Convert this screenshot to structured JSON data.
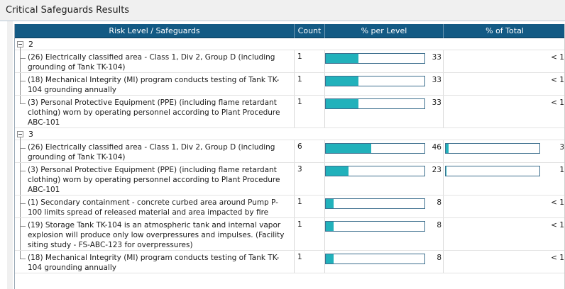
{
  "panel": {
    "title": "Critical Safeguards Results"
  },
  "columns": {
    "risk": "Risk Level / Safeguards",
    "count": "Count",
    "pct_level": "% per Level",
    "pct_total": "% of Total"
  },
  "groups": [
    {
      "label": "2",
      "rows": [
        {
          "name": "(26) Electrically classified area - Class 1, Div 2, Group D (including grounding of Tank TK-104)",
          "count": "1",
          "pct_level": 33,
          "pct_level_text": "33",
          "pct_total": 0.5,
          "pct_total_text": "< 1"
        },
        {
          "name": "(18) Mechanical Integrity (MI) program conducts testing of Tank TK-104 grounding annually",
          "count": "1",
          "pct_level": 33,
          "pct_level_text": "33",
          "pct_total": 0.5,
          "pct_total_text": "< 1"
        },
        {
          "name": "(3) Personal Protective Equipment (PPE) (including flame retardant clothing) worn by operating personnel according to Plant Procedure ABC-101",
          "count": "1",
          "pct_level": 33,
          "pct_level_text": "33",
          "pct_total": 0.5,
          "pct_total_text": "< 1"
        }
      ]
    },
    {
      "label": "3",
      "rows": [
        {
          "name": "(26) Electrically classified area - Class 1, Div 2, Group D (including grounding of Tank TK-104)",
          "count": "6",
          "pct_level": 46,
          "pct_level_text": "46",
          "pct_total": 3,
          "pct_total_text": "3"
        },
        {
          "name": "(3) Personal Protective Equipment (PPE) (including flame retardant clothing) worn by operating personnel according to Plant Procedure ABC-101",
          "count": "3",
          "pct_level": 23,
          "pct_level_text": "23",
          "pct_total": 1,
          "pct_total_text": "1"
        },
        {
          "name": "(1) Secondary containment - concrete curbed area around Pump P-100 limits spread of released material and area impacted by fire",
          "count": "1",
          "pct_level": 8,
          "pct_level_text": "8",
          "pct_total": 0.5,
          "pct_total_text": "< 1"
        },
        {
          "name": "(19) Storage Tank TK-104 is an atmospheric tank and internal vapor explosion will produce only low overpressures and impulses. (Facility siting study - FS-ABC-123 for overpressures)",
          "count": "1",
          "pct_level": 8,
          "pct_level_text": "8",
          "pct_total": 0.5,
          "pct_total_text": "< 1"
        },
        {
          "name": "(18) Mechanical Integrity (MI) program conducts testing of Tank TK-104 grounding annually",
          "count": "1",
          "pct_level": 8,
          "pct_level_text": "8",
          "pct_total": 0.5,
          "pct_total_text": "< 1"
        }
      ]
    }
  ],
  "colors": {
    "header": "#135a84",
    "bar_fill": "#21b1bb",
    "bar_border": "#3d6f8e"
  }
}
